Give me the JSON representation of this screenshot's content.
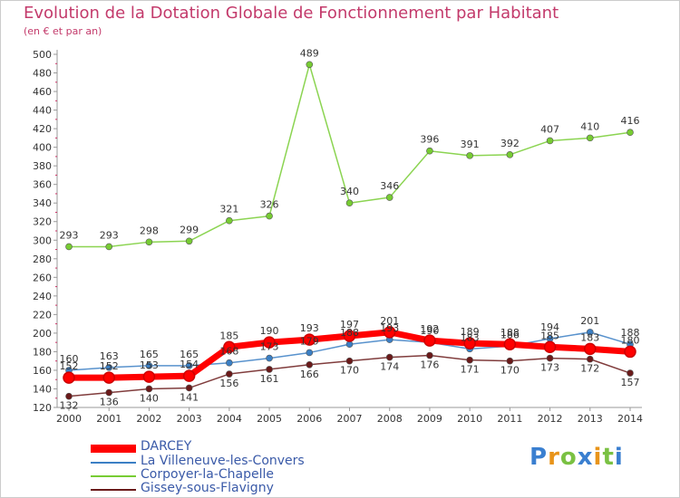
{
  "chart_data": {
    "type": "line",
    "title": "Evolution de la Dotation Globale de Fonctionnement par Habitant",
    "subtitle": "(en € et par an)",
    "xlabel": "",
    "ylabel": "",
    "x": [
      2000,
      2001,
      2002,
      2003,
      2004,
      2005,
      2006,
      2007,
      2008,
      2009,
      2010,
      2011,
      2012,
      2013,
      2014
    ],
    "ylim": [
      120,
      500
    ],
    "ytick_step": 20,
    "grid": false,
    "series": [
      {
        "name": "DARCEY",
        "color": "#ff0000",
        "values": [
          152,
          152,
          153,
          154,
          185,
          190,
          193,
          197,
          201,
          192,
          189,
          188,
          185,
          183,
          180
        ]
      },
      {
        "name": "La Villeneuve-les-Convers",
        "color": "#3b7fc4",
        "values": [
          160,
          163,
          165,
          165,
          168,
          173,
          179,
          188,
          193,
          190,
          183,
          186,
          194,
          201,
          188
        ]
      },
      {
        "name": "Corpoyer-la-Chapelle",
        "color": "#77cc33",
        "values": [
          293,
          293,
          298,
          299,
          321,
          326,
          489,
          340,
          346,
          396,
          391,
          392,
          407,
          410,
          416
        ]
      },
      {
        "name": "Gissey-sous-Flavigny",
        "color": "#6a1a1a",
        "values": [
          132,
          136,
          140,
          141,
          156,
          161,
          166,
          170,
          174,
          176,
          171,
          170,
          173,
          172,
          157
        ]
      }
    ],
    "legend_position": "bottom-left"
  },
  "logo": {
    "letters": [
      {
        "ch": "P",
        "color": "#3a7fd0"
      },
      {
        "ch": "r",
        "color": "#e8941a"
      },
      {
        "ch": "o",
        "color": "#7ac143"
      },
      {
        "ch": "x",
        "color": "#3a7fd0"
      },
      {
        "ch": "i",
        "color": "#e8941a"
      },
      {
        "ch": "t",
        "color": "#7ac143"
      },
      {
        "ch": "i",
        "color": "#3a7fd0"
      }
    ]
  }
}
